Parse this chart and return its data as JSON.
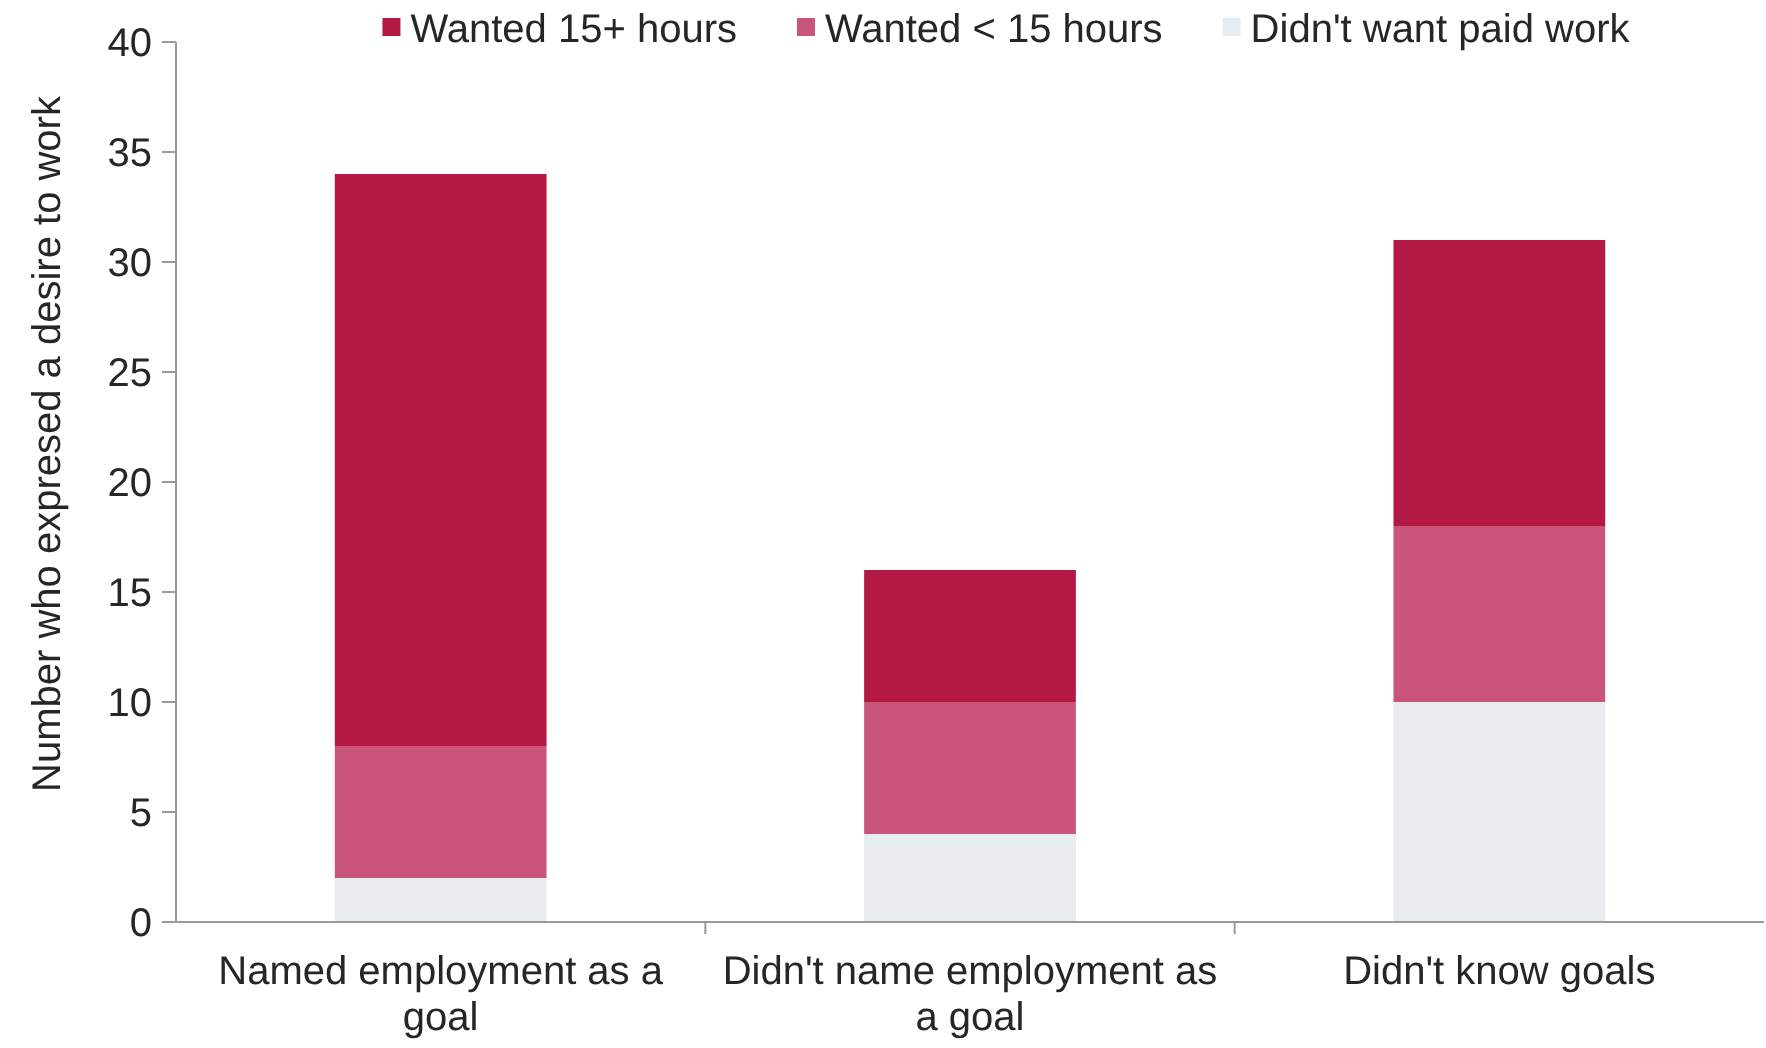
{
  "chart_data": {
    "type": "bar",
    "stacked": true,
    "ylabel": "Number who expresed a desire to work",
    "categories": [
      "Named employment as a goal",
      "Didn't name employment as a goal",
      "Didn't know goals"
    ],
    "series": [
      {
        "name": "Didn't want paid work",
        "color": "#e8ecee",
        "values": [
          2,
          4,
          10
        ]
      },
      {
        "name": "Wanted < 15 hours",
        "color": "#c9567a",
        "values": [
          6,
          6,
          8
        ]
      },
      {
        "name": "Wanted 15+ hours",
        "color": "#b31942",
        "values": [
          26,
          6,
          13
        ]
      }
    ],
    "ylim": [
      0,
      40
    ],
    "yticks": [
      0,
      5,
      10,
      15,
      20,
      25,
      30,
      35,
      40
    ],
    "legend": "top"
  }
}
